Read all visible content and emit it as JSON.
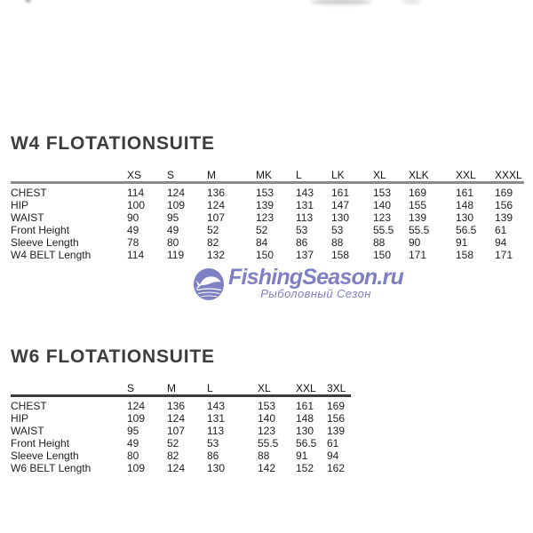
{
  "watermark": {
    "brand": "FishingSeason.ru",
    "tagline": "Рыболовный Сезон",
    "color": "#7e80c3",
    "logo_icon": "fish-globe-icon"
  },
  "tables": [
    {
      "title": "W4 FLOTATIONSUITE",
      "columns": [
        "XS",
        "S",
        "M",
        "MK",
        "L",
        "LK",
        "XL",
        "XLK",
        "XXL",
        "XXXL"
      ],
      "rows": [
        {
          "label": "CHEST",
          "values": [
            "114",
            "124",
            "136",
            "153",
            "143",
            "161",
            "153",
            "169",
            "161",
            "169"
          ]
        },
        {
          "label": "HIP",
          "values": [
            "100",
            "109",
            "124",
            "139",
            "131",
            "147",
            "140",
            "155",
            "148",
            "156"
          ]
        },
        {
          "label": "WAIST",
          "values": [
            "90",
            "95",
            "107",
            "123",
            "113",
            "130",
            "123",
            "139",
            "130",
            "139"
          ]
        },
        {
          "label": "Front Height",
          "values": [
            "49",
            "49",
            "52",
            "52",
            "53",
            "53",
            "55.5",
            "55.5",
            "56.5",
            "61"
          ]
        },
        {
          "label": "Sleeve Length",
          "values": [
            "78",
            "80",
            "82",
            "84",
            "86",
            "88",
            "88",
            "90",
            "91",
            "94"
          ]
        },
        {
          "label": "W4 BELT Length",
          "values": [
            "114",
            "119",
            "132",
            "150",
            "137",
            "158",
            "150",
            "171",
            "158",
            "171"
          ]
        }
      ]
    },
    {
      "title": "W6 FLOTATIONSUITE",
      "columns": [
        "S",
        "M",
        "L",
        "XL",
        "XXL",
        "3XL"
      ],
      "rows": [
        {
          "label": "CHEST",
          "values": [
            "124",
            "136",
            "143",
            "153",
            "161",
            "169"
          ]
        },
        {
          "label": "HIP",
          "values": [
            "109",
            "124",
            "131",
            "140",
            "148",
            "156"
          ]
        },
        {
          "label": "WAIST",
          "values": [
            "95",
            "107",
            "113",
            "123",
            "130",
            "139"
          ]
        },
        {
          "label": "Front Height",
          "values": [
            "49",
            "52",
            "53",
            "55.5",
            "56.5",
            "61"
          ]
        },
        {
          "label": "Sleeve Length",
          "values": [
            "80",
            "82",
            "86",
            "88",
            "91",
            "94"
          ]
        },
        {
          "label": "W6 BELT Length",
          "values": [
            "109",
            "124",
            "130",
            "142",
            "152",
            "162"
          ]
        }
      ]
    }
  ]
}
